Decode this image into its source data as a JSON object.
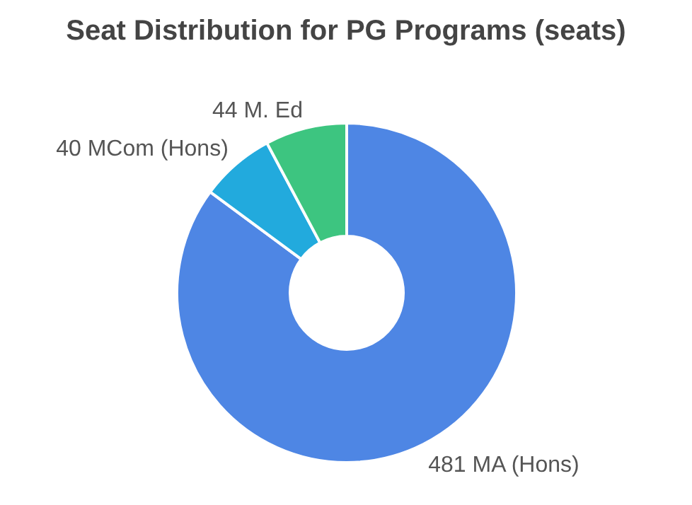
{
  "chart_data": {
    "type": "donut",
    "title": "Seat Distribution for PG Programs (seats)",
    "categories": [
      "MA (Hons)",
      "MCom (Hons)",
      "M. Ed"
    ],
    "values": [
      481,
      40,
      44
    ],
    "colors": [
      "#4e86e4",
      "#22aadd",
      "#3dc580"
    ],
    "data_labels": true,
    "legend": false
  }
}
